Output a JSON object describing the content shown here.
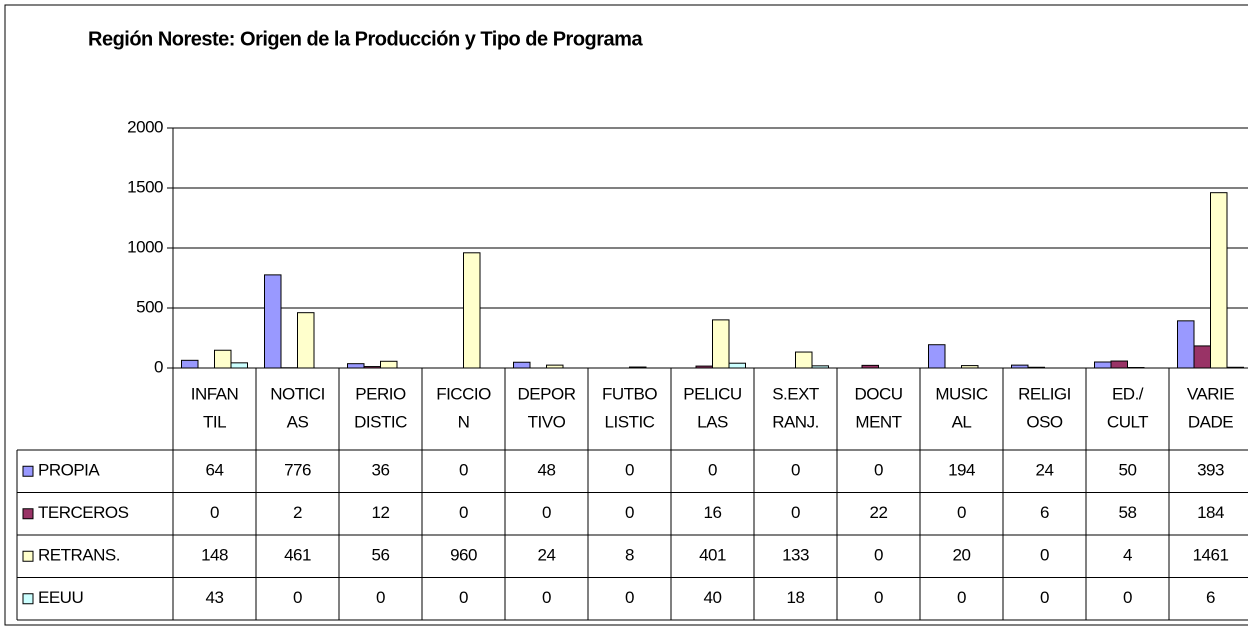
{
  "chart_data": {
    "type": "bar",
    "title": "Región Noreste: Origen de la Producción y Tipo de Programa",
    "categories": [
      [
        "INFAN",
        "TIL"
      ],
      [
        "NOTICI",
        "AS"
      ],
      [
        "PERIO",
        "DISTIC"
      ],
      [
        "FICCIO",
        "N"
      ],
      [
        "DEPOR",
        "TIVO"
      ],
      [
        "FUTBO",
        "LISTIC"
      ],
      [
        "PELICU",
        "LAS"
      ],
      [
        "S.EXT",
        "RANJ."
      ],
      [
        "DOCU",
        "MENT"
      ],
      [
        "MUSIC",
        "AL"
      ],
      [
        "RELIGI",
        "OSO"
      ],
      [
        "ED./",
        "CULT"
      ],
      [
        "VARIE",
        "DADE"
      ]
    ],
    "series": [
      {
        "name": "PROPIA",
        "color": "#9999ff",
        "values": [
          64,
          776,
          36,
          0,
          48,
          0,
          0,
          0,
          0,
          194,
          24,
          50,
          393
        ]
      },
      {
        "name": "TERCEROS",
        "color": "#993366",
        "values": [
          0,
          2,
          12,
          0,
          0,
          0,
          16,
          0,
          22,
          0,
          6,
          58,
          184
        ]
      },
      {
        "name": "RETRANS.",
        "color": "#ffffcc",
        "values": [
          148,
          461,
          56,
          960,
          24,
          8,
          401,
          133,
          0,
          20,
          0,
          4,
          1461
        ]
      },
      {
        "name": "EEUU",
        "color": "#ccffff",
        "values": [
          43,
          0,
          0,
          0,
          0,
          0,
          40,
          18,
          0,
          0,
          0,
          0,
          6
        ]
      }
    ],
    "ylim": [
      0,
      2000
    ],
    "yticks": [
      0,
      500,
      1000,
      1500,
      2000
    ],
    "grid": true
  }
}
